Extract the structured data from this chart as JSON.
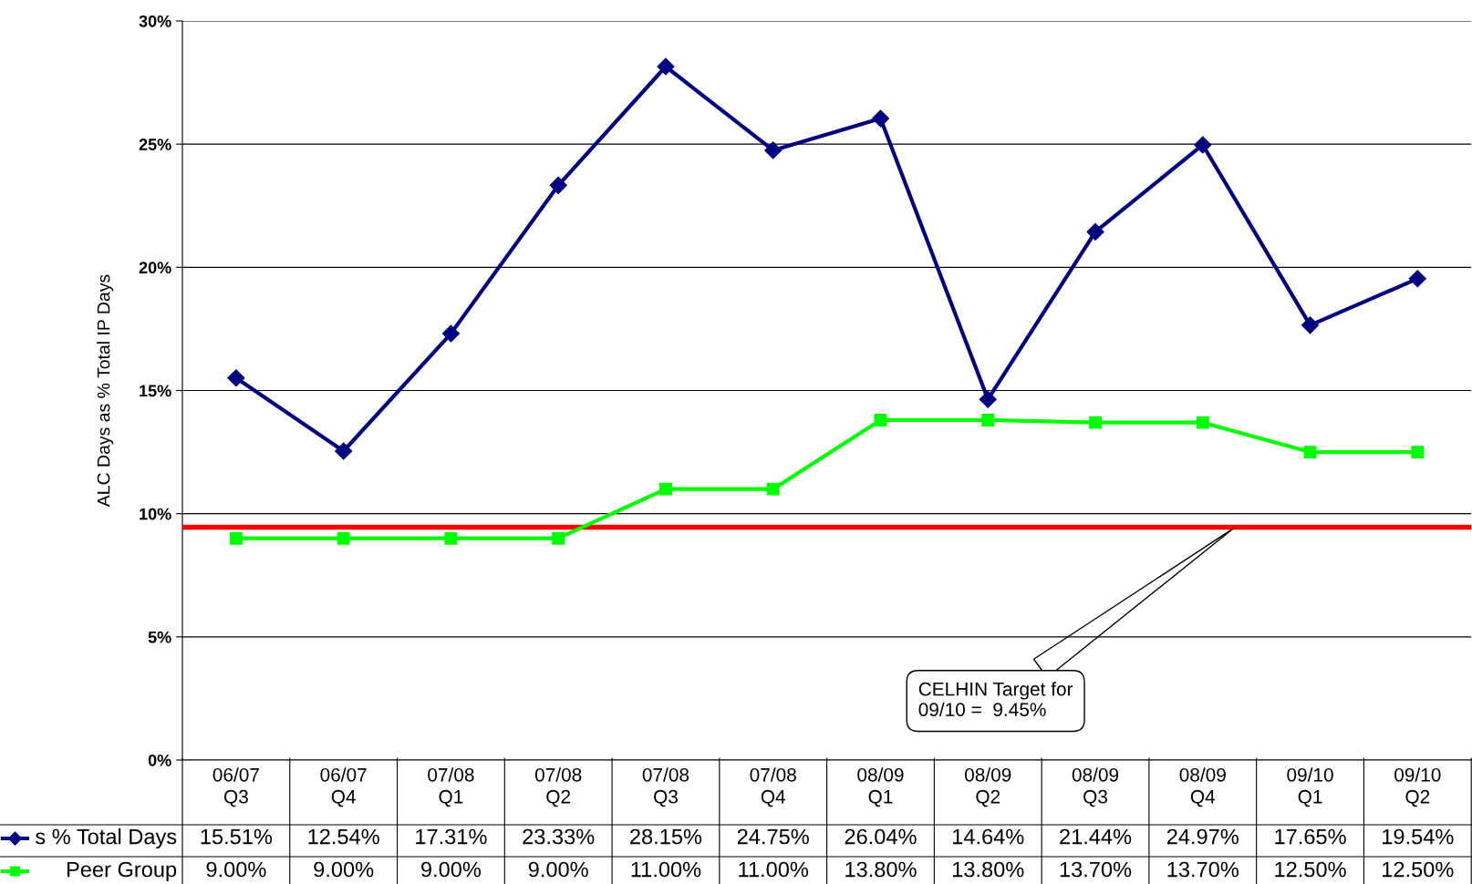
{
  "chart_data": {
    "type": "line",
    "ylabel": "ALC Days as % Total IP Days",
    "categories": [
      "06/07\nQ3",
      "06/07\nQ4",
      "07/08\nQ1",
      "07/08\nQ2",
      "07/08\nQ3",
      "07/08\nQ4",
      "08/09\nQ1",
      "08/09\nQ2",
      "08/09\nQ3",
      "08/09\nQ4",
      "09/10\nQ1",
      "09/10\nQ2"
    ],
    "series": [
      {
        "name": "s % Total Days",
        "color": "#000080",
        "marker": "diamond",
        "values": [
          15.51,
          12.54,
          17.31,
          23.33,
          28.15,
          24.75,
          26.04,
          14.64,
          21.44,
          24.97,
          17.65,
          19.54
        ],
        "value_labels": [
          "15.51%",
          "12.54%",
          "17.31%",
          "23.33%",
          "28.15%",
          "24.75%",
          "26.04%",
          "14.64%",
          "21.44%",
          "24.97%",
          "17.65%",
          "19.54%"
        ]
      },
      {
        "name": "Peer Group",
        "color": "#00ff00",
        "marker": "square",
        "values": [
          9.0,
          9.0,
          9.0,
          9.0,
          11.0,
          11.0,
          13.8,
          13.8,
          13.7,
          13.7,
          12.5,
          12.5
        ],
        "value_labels": [
          "9.00%",
          "9.00%",
          "9.00%",
          "9.00%",
          "11.00%",
          "11.00%",
          "13.80%",
          "13.80%",
          "13.70%",
          "13.70%",
          "12.50%",
          "12.50%"
        ]
      }
    ],
    "ylim": [
      0,
      30
    ],
    "yticks": [
      {
        "value": 0,
        "label": "0%"
      },
      {
        "value": 5,
        "label": "5%"
      },
      {
        "value": 10,
        "label": "10%"
      },
      {
        "value": 15,
        "label": "15%"
      },
      {
        "value": 20,
        "label": "20%"
      },
      {
        "value": 25,
        "label": "25%"
      },
      {
        "value": 30,
        "label": "30%"
      }
    ],
    "grid": "y",
    "legend": "bottom left",
    "data_labels": true,
    "ref_lines": [
      {
        "axis": "y",
        "value": 9.45,
        "color": "#ff0000"
      }
    ],
    "annotations": [
      "CELHIN Target for\n09/10 =  9.45%"
    ]
  }
}
